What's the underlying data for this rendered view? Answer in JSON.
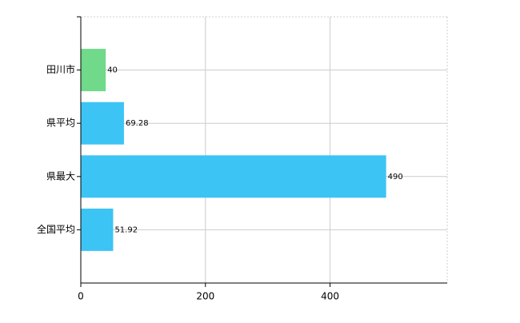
{
  "chart_data": {
    "type": "hbar",
    "categories": [
      "田川市",
      "県平均",
      "県最大",
      "全国平均"
    ],
    "values": [
      40,
      69.28,
      490,
      51.92
    ],
    "colors": [
      "#70d98a",
      "#3cc4f5",
      "#3cc4f5",
      "#3cc4f5"
    ],
    "xlim": [
      0,
      588
    ],
    "xticks": [
      0,
      200,
      400
    ],
    "grid": true
  }
}
